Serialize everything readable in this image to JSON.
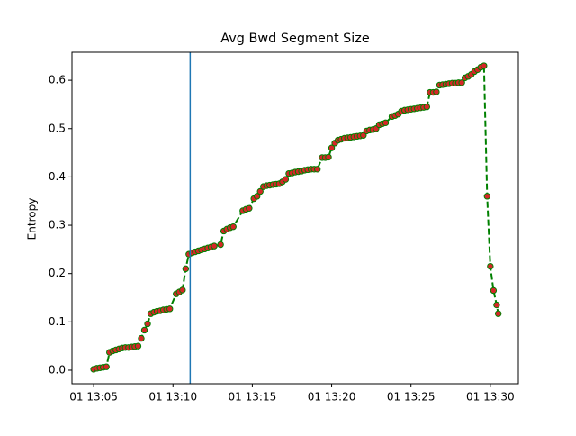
{
  "chart_data": {
    "type": "line",
    "title": "Avg Bwd Segment Size",
    "ylabel": "Entropy",
    "x": [
      "01 13:05:00",
      "01 13:05:12",
      "01 13:05:24",
      "01 13:05:36",
      "01 13:05:48",
      "01 13:06:00",
      "01 13:06:12",
      "01 13:06:24",
      "01 13:06:36",
      "01 13:06:48",
      "01 13:07:00",
      "01 13:07:12",
      "01 13:07:24",
      "01 13:07:36",
      "01 13:07:48",
      "01 13:08:00",
      "01 13:08:12",
      "01 13:08:24",
      "01 13:08:36",
      "01 13:08:48",
      "01 13:09:00",
      "01 13:09:12",
      "01 13:09:24",
      "01 13:09:36",
      "01 13:09:48",
      "01 13:10:12",
      "01 13:10:24",
      "01 13:10:36",
      "01 13:10:48",
      "01 13:11:00",
      "01 13:11:12",
      "01 13:11:24",
      "01 13:11:36",
      "01 13:11:48",
      "01 13:12:00",
      "01 13:12:12",
      "01 13:12:24",
      "01 13:12:36",
      "01 13:13:00",
      "01 13:13:12",
      "01 13:13:24",
      "01 13:13:36",
      "01 13:13:48",
      "01 13:14:24",
      "01 13:14:36",
      "01 13:14:48",
      "01 13:15:06",
      "01 13:15:18",
      "01 13:15:30",
      "01 13:15:42",
      "01 13:15:54",
      "01 13:16:06",
      "01 13:16:18",
      "01 13:16:30",
      "01 13:16:42",
      "01 13:16:54",
      "01 13:17:06",
      "01 13:17:18",
      "01 13:17:30",
      "01 13:17:42",
      "01 13:17:54",
      "01 13:18:06",
      "01 13:18:18",
      "01 13:18:30",
      "01 13:18:42",
      "01 13:18:54",
      "01 13:19:06",
      "01 13:19:24",
      "01 13:19:36",
      "01 13:19:48",
      "01 13:20:00",
      "01 13:20:12",
      "01 13:20:24",
      "01 13:20:36",
      "01 13:20:48",
      "01 13:21:00",
      "01 13:21:12",
      "01 13:21:24",
      "01 13:21:36",
      "01 13:21:48",
      "01 13:22:00",
      "01 13:22:12",
      "01 13:22:24",
      "01 13:22:36",
      "01 13:22:48",
      "01 13:23:00",
      "01 13:23:12",
      "01 13:23:24",
      "01 13:23:48",
      "01 13:24:00",
      "01 13:24:12",
      "01 13:24:24",
      "01 13:24:36",
      "01 13:24:48",
      "01 13:25:00",
      "01 13:25:12",
      "01 13:25:24",
      "01 13:25:36",
      "01 13:25:48",
      "01 13:26:00",
      "01 13:26:12",
      "01 13:26:24",
      "01 13:26:36",
      "01 13:26:48",
      "01 13:27:00",
      "01 13:27:12",
      "01 13:27:24",
      "01 13:27:36",
      "01 13:27:48",
      "01 13:28:00",
      "01 13:28:12",
      "01 13:28:24",
      "01 13:28:36",
      "01 13:28:48",
      "01 13:29:00",
      "01 13:29:12",
      "01 13:29:24",
      "01 13:29:36",
      "01 13:29:48",
      "01 13:30:00",
      "01 13:30:12",
      "01 13:30:24",
      "01 13:30:30"
    ],
    "series": [
      {
        "color": "#008000",
        "marker_color": "#d62728",
        "values": [
          0.002,
          0.004,
          0.005,
          0.006,
          0.007,
          0.037,
          0.04,
          0.042,
          0.044,
          0.046,
          0.047,
          0.047,
          0.048,
          0.049,
          0.05,
          0.066,
          0.083,
          0.096,
          0.117,
          0.12,
          0.122,
          0.123,
          0.125,
          0.126,
          0.127,
          0.158,
          0.162,
          0.166,
          0.21,
          0.24,
          0.243,
          0.245,
          0.247,
          0.249,
          0.251,
          0.253,
          0.255,
          0.257,
          0.26,
          0.288,
          0.292,
          0.295,
          0.297,
          0.33,
          0.333,
          0.335,
          0.355,
          0.36,
          0.37,
          0.38,
          0.382,
          0.383,
          0.384,
          0.385,
          0.386,
          0.39,
          0.395,
          0.407,
          0.408,
          0.41,
          0.411,
          0.412,
          0.414,
          0.415,
          0.416,
          0.416,
          0.416,
          0.44,
          0.44,
          0.441,
          0.46,
          0.47,
          0.476,
          0.478,
          0.48,
          0.481,
          0.482,
          0.483,
          0.484,
          0.485,
          0.486,
          0.495,
          0.497,
          0.498,
          0.5,
          0.508,
          0.51,
          0.512,
          0.525,
          0.527,
          0.53,
          0.536,
          0.538,
          0.539,
          0.54,
          0.541,
          0.542,
          0.543,
          0.544,
          0.545,
          0.575,
          0.575,
          0.576,
          0.59,
          0.591,
          0.592,
          0.593,
          0.594,
          0.594,
          0.595,
          0.595,
          0.605,
          0.608,
          0.612,
          0.618,
          0.622,
          0.627,
          0.63,
          0.36,
          0.215,
          0.165,
          0.135,
          0.117
        ]
      }
    ],
    "xlim": [
      "01 13:03:38",
      "01 13:31:46"
    ],
    "xticks": [
      "01 13:05",
      "01 13:10",
      "01 13:15",
      "01 13:20",
      "01 13:25",
      "01 13:30"
    ],
    "ylim": [
      -0.028,
      0.658
    ],
    "yticks": [
      {
        "value": 0,
        "label": "0.0"
      },
      0.1,
      0.2,
      0.3,
      0.4,
      0.5,
      0.6
    ],
    "vline": {
      "x": "01 13:11:05",
      "color": "#1f77b4"
    }
  }
}
